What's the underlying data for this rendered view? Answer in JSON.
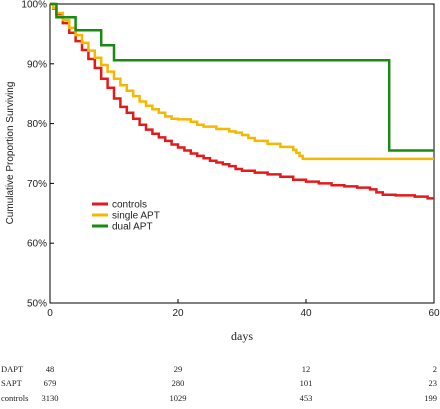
{
  "chart_data": {
    "type": "line",
    "ylabel": "Cumulative Proportion Surviving",
    "xlabel": "days",
    "xlim": [
      0,
      60
    ],
    "ylim": [
      50,
      100
    ],
    "xticks": [
      "0",
      "20",
      "40",
      "60"
    ],
    "yticks": [
      "50%",
      "60%",
      "70%",
      "80%",
      "90%",
      "100%"
    ],
    "legend_position": "center-left",
    "series": [
      {
        "name": "controls",
        "color": "#e31a1c",
        "points": [
          [
            0,
            100
          ],
          [
            0.5,
            99.2
          ],
          [
            1,
            98.3
          ],
          [
            2,
            96.8
          ],
          [
            3,
            95.2
          ],
          [
            4,
            93.8
          ],
          [
            5,
            92.3
          ],
          [
            6,
            90.8
          ],
          [
            7,
            89.3
          ],
          [
            8,
            87.5
          ],
          [
            9,
            86
          ],
          [
            10,
            84.2
          ],
          [
            11,
            82.8
          ],
          [
            12,
            81.8
          ],
          [
            13,
            80.8
          ],
          [
            14,
            79.8
          ],
          [
            15,
            79
          ],
          [
            16,
            78.3
          ],
          [
            17,
            77.7
          ],
          [
            18,
            77.1
          ],
          [
            19,
            76.5
          ],
          [
            20,
            76
          ],
          [
            21,
            75.5
          ],
          [
            22,
            75
          ],
          [
            23,
            74.6
          ],
          [
            24,
            74.2
          ],
          [
            25,
            73.8
          ],
          [
            26,
            73.5
          ],
          [
            27,
            73.2
          ],
          [
            28,
            72.9
          ],
          [
            29,
            72.4
          ],
          [
            30,
            72.1
          ],
          [
            32,
            71.8
          ],
          [
            34,
            71.5
          ],
          [
            36,
            71.1
          ],
          [
            38,
            70.6
          ],
          [
            40,
            70.3
          ],
          [
            42,
            70
          ],
          [
            44,
            69.7
          ],
          [
            46,
            69.5
          ],
          [
            48,
            69.3
          ],
          [
            50,
            69
          ],
          [
            51,
            68.5
          ],
          [
            52,
            68.1
          ],
          [
            54,
            68
          ],
          [
            56,
            68
          ],
          [
            57,
            67.8
          ],
          [
            59,
            67.5
          ],
          [
            60,
            67.5
          ]
        ]
      },
      {
        "name": "single APT",
        "color": "#f5b800",
        "points": [
          [
            0,
            100
          ],
          [
            0.5,
            99.3
          ],
          [
            1,
            98.5
          ],
          [
            2,
            97.3
          ],
          [
            3,
            96
          ],
          [
            4,
            94.8
          ],
          [
            5,
            93.5
          ],
          [
            6,
            92.2
          ],
          [
            7,
            91
          ],
          [
            8,
            89.8
          ],
          [
            9,
            88.7
          ],
          [
            10,
            87.5
          ],
          [
            11,
            86.4
          ],
          [
            12,
            85.5
          ],
          [
            13,
            84.6
          ],
          [
            14,
            83.7
          ],
          [
            15,
            83
          ],
          [
            16,
            82.4
          ],
          [
            17,
            81.8
          ],
          [
            18,
            81.2
          ],
          [
            19,
            80.8
          ],
          [
            20,
            80.7
          ],
          [
            22,
            80.3
          ],
          [
            23,
            79.8
          ],
          [
            24,
            79.5
          ],
          [
            26,
            79.1
          ],
          [
            28,
            78.7
          ],
          [
            29,
            78.5
          ],
          [
            30,
            78.1
          ],
          [
            31,
            77.6
          ],
          [
            32,
            77.1
          ],
          [
            34,
            76.6
          ],
          [
            36,
            76.1
          ],
          [
            38,
            75.6
          ],
          [
            38.5,
            75.1
          ],
          [
            39,
            74.6
          ],
          [
            39.5,
            74.1
          ],
          [
            40,
            74.1
          ],
          [
            60,
            74.1
          ]
        ]
      },
      {
        "name": "dual APT",
        "color": "#1a8a12",
        "points": [
          [
            0,
            100
          ],
          [
            1,
            100
          ],
          [
            1,
            97.8
          ],
          [
            4,
            97.8
          ],
          [
            4,
            95.6
          ],
          [
            8,
            95.6
          ],
          [
            8,
            93.1
          ],
          [
            10,
            93.1
          ],
          [
            10,
            90.6
          ],
          [
            53,
            90.6
          ],
          [
            53,
            75.5
          ],
          [
            60,
            75.5
          ]
        ]
      }
    ]
  },
  "risk_table": {
    "rows": [
      {
        "label": "DAPT",
        "values": [
          "48",
          "29",
          "12",
          "2"
        ]
      },
      {
        "label": "SAPT",
        "values": [
          "679",
          "280",
          "101",
          "23"
        ]
      },
      {
        "label": "controls",
        "values": [
          "3130",
          "1029",
          "453",
          "199"
        ]
      }
    ]
  }
}
